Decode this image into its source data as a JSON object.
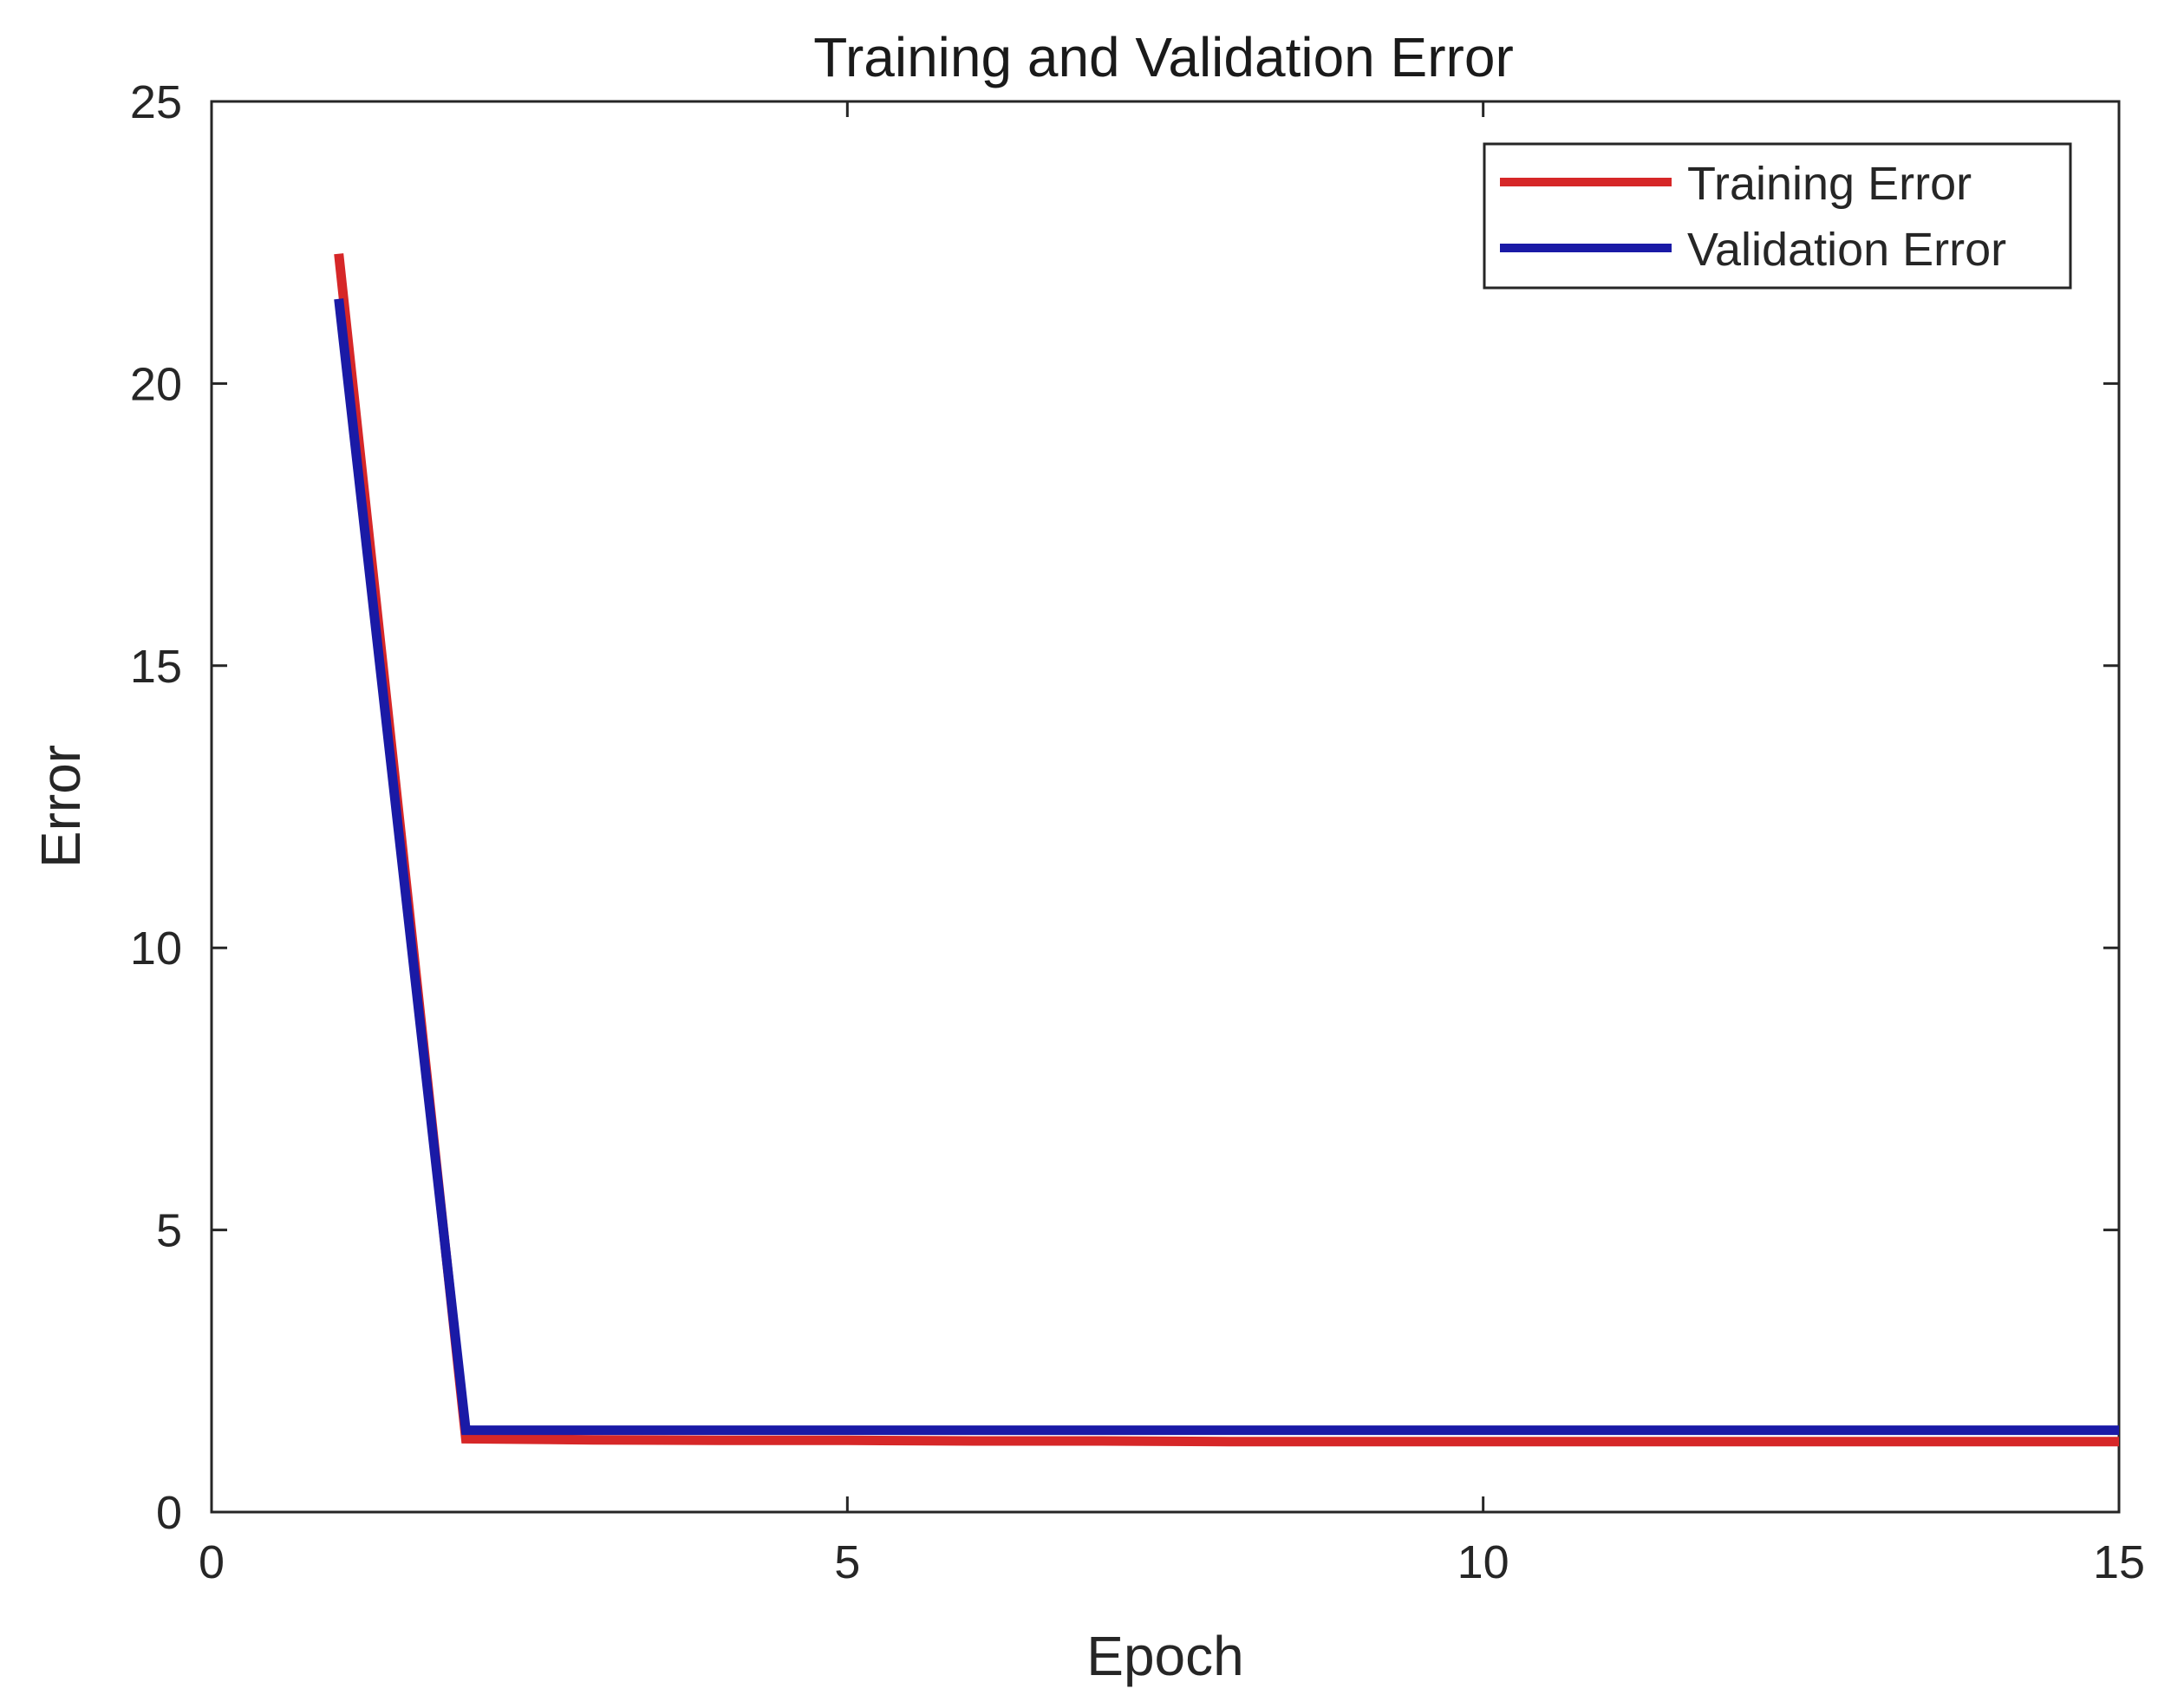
{
  "chart_data": {
    "type": "line",
    "title": "Training and Validation Error",
    "xlabel": "Epoch",
    "ylabel": "Error",
    "xlim": [
      0,
      15
    ],
    "ylim": [
      0,
      25
    ],
    "xticks": [
      0,
      5,
      10,
      15
    ],
    "yticks": [
      0,
      5,
      10,
      15,
      20,
      25
    ],
    "grid": false,
    "legend_position": "top-right",
    "series": [
      {
        "name": "Training Error",
        "color": "#d62728",
        "x": [
          1,
          2,
          3,
          4,
          5,
          6,
          7,
          8,
          9,
          10,
          11,
          12,
          13,
          14,
          15
        ],
        "y": [
          22.3,
          1.3,
          1.28,
          1.27,
          1.27,
          1.26,
          1.26,
          1.25,
          1.25,
          1.25,
          1.25,
          1.25,
          1.25,
          1.25,
          1.25
        ]
      },
      {
        "name": "Validation Error",
        "color": "#1a1aa6",
        "x": [
          1,
          2,
          3,
          4,
          5,
          6,
          7,
          8,
          9,
          10,
          11,
          12,
          13,
          14,
          15
        ],
        "y": [
          21.5,
          1.45,
          1.45,
          1.45,
          1.45,
          1.45,
          1.45,
          1.45,
          1.45,
          1.45,
          1.45,
          1.45,
          1.45,
          1.45,
          1.45
        ]
      }
    ]
  }
}
